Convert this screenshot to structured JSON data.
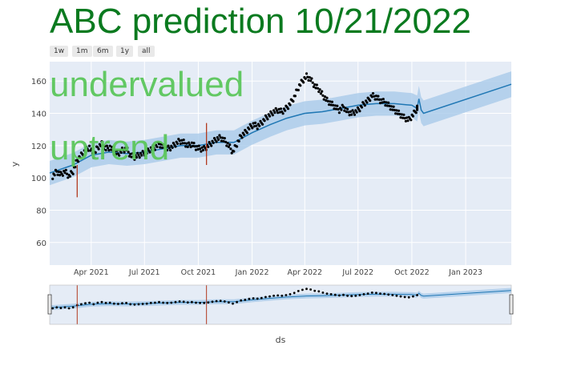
{
  "title": "ABC prediction 10/21/2022",
  "range_buttons": [
    "1w",
    "1m",
    "6m",
    "1y",
    "all"
  ],
  "annotations": [
    "undervalued",
    "uptrend"
  ],
  "colors": {
    "title": "#0a7a1f",
    "annotation": "#5cc75c",
    "plot_bg": "#e5ecf6",
    "band": "#a9cbea",
    "trend": "#1f77b4",
    "points": "#000000",
    "changepoint": "#b23a1f",
    "slider_mask": "#8e8e8e"
  },
  "chart_data": {
    "type": "line",
    "xlabel": "ds",
    "ylabel": "y",
    "y_ticks": [
      60,
      80,
      100,
      120,
      140,
      160
    ],
    "ylim": [
      46,
      172
    ],
    "x_ticks": [
      {
        "date": "2021-04-01",
        "label": "Apr 2021"
      },
      {
        "date": "2021-07-01",
        "label": "Jul 2021"
      },
      {
        "date": "2021-10-01",
        "label": "Oct 2021"
      },
      {
        "date": "2022-01-01",
        "label": "Jan 2022"
      },
      {
        "date": "2022-04-01",
        "label": "Apr 2022"
      },
      {
        "date": "2022-07-01",
        "label": "Jul 2022"
      },
      {
        "date": "2022-10-01",
        "label": "Oct 2022"
      },
      {
        "date": "2023-01-01",
        "label": "Jan 2023"
      }
    ],
    "xlim": [
      "2021-01-20",
      "2023-03-20"
    ],
    "grid": true,
    "legend": false,
    "actual_points": [
      [
        "2021-01-25",
        101
      ],
      [
        "2021-02-01",
        104
      ],
      [
        "2021-02-08",
        102
      ],
      [
        "2021-02-15",
        104
      ],
      [
        "2021-02-22",
        101
      ],
      [
        "2021-03-01",
        104
      ],
      [
        "2021-03-08",
        111
      ],
      [
        "2021-03-15",
        114
      ],
      [
        "2021-03-22",
        117
      ],
      [
        "2021-03-29",
        119
      ],
      [
        "2021-04-05",
        114
      ],
      [
        "2021-04-12",
        119
      ],
      [
        "2021-04-19",
        121
      ],
      [
        "2021-04-26",
        118
      ],
      [
        "2021-05-03",
        119
      ],
      [
        "2021-05-10",
        116
      ],
      [
        "2021-05-17",
        115
      ],
      [
        "2021-05-24",
        117
      ],
      [
        "2021-05-31",
        118
      ],
      [
        "2021-06-07",
        114
      ],
      [
        "2021-06-14",
        113
      ],
      [
        "2021-06-21",
        114
      ],
      [
        "2021-06-28",
        115
      ],
      [
        "2021-07-05",
        116
      ],
      [
        "2021-07-12",
        118
      ],
      [
        "2021-07-19",
        119
      ],
      [
        "2021-07-26",
        121
      ],
      [
        "2021-08-02",
        119
      ],
      [
        "2021-08-09",
        118
      ],
      [
        "2021-08-16",
        119
      ],
      [
        "2021-08-23",
        121
      ],
      [
        "2021-08-30",
        123
      ],
      [
        "2021-09-06",
        122
      ],
      [
        "2021-09-13",
        120
      ],
      [
        "2021-09-20",
        121
      ],
      [
        "2021-09-27",
        119
      ],
      [
        "2021-10-04",
        118
      ],
      [
        "2021-10-11",
        118
      ],
      [
        "2021-10-18",
        120
      ],
      [
        "2021-10-25",
        122
      ],
      [
        "2021-11-01",
        124
      ],
      [
        "2021-11-08",
        125
      ],
      [
        "2021-11-15",
        123
      ],
      [
        "2021-11-22",
        120
      ],
      [
        "2021-11-29",
        116
      ],
      [
        "2021-12-06",
        121
      ],
      [
        "2021-12-13",
        126
      ],
      [
        "2021-12-20",
        128
      ],
      [
        "2021-12-27",
        131
      ],
      [
        "2022-01-03",
        133
      ],
      [
        "2022-01-10",
        132
      ],
      [
        "2022-01-17",
        134
      ],
      [
        "2022-01-24",
        137
      ],
      [
        "2022-01-31",
        139
      ],
      [
        "2022-02-07",
        141
      ],
      [
        "2022-02-14",
        142
      ],
      [
        "2022-02-21",
        141
      ],
      [
        "2022-02-28",
        143
      ],
      [
        "2022-03-07",
        146
      ],
      [
        "2022-03-14",
        150
      ],
      [
        "2022-03-21",
        156
      ],
      [
        "2022-03-28",
        160
      ],
      [
        "2022-04-04",
        163
      ],
      [
        "2022-04-11",
        161
      ],
      [
        "2022-04-18",
        157
      ],
      [
        "2022-04-25",
        155
      ],
      [
        "2022-05-02",
        151
      ],
      [
        "2022-05-09",
        148
      ],
      [
        "2022-05-16",
        146
      ],
      [
        "2022-05-23",
        144
      ],
      [
        "2022-05-30",
        142
      ],
      [
        "2022-06-06",
        144
      ],
      [
        "2022-06-13",
        141
      ],
      [
        "2022-06-20",
        140
      ],
      [
        "2022-06-27",
        141
      ],
      [
        "2022-07-04",
        143
      ],
      [
        "2022-07-11",
        146
      ],
      [
        "2022-07-18",
        148
      ],
      [
        "2022-07-25",
        151
      ],
      [
        "2022-08-01",
        150
      ],
      [
        "2022-08-08",
        148
      ],
      [
        "2022-08-15",
        147
      ],
      [
        "2022-08-22",
        145
      ],
      [
        "2022-08-29",
        143
      ],
      [
        "2022-09-05",
        141
      ],
      [
        "2022-09-12",
        139
      ],
      [
        "2022-09-19",
        137
      ],
      [
        "2022-09-26",
        136
      ],
      [
        "2022-10-03",
        139
      ],
      [
        "2022-10-10",
        143
      ]
    ],
    "trend": [
      [
        "2021-01-20",
        103
      ],
      [
        "2021-03-01",
        108
      ],
      [
        "2021-04-01",
        114
      ],
      [
        "2021-05-01",
        116
      ],
      [
        "2021-06-01",
        115
      ],
      [
        "2021-07-01",
        116
      ],
      [
        "2021-08-01",
        118
      ],
      [
        "2021-09-01",
        120
      ],
      [
        "2021-10-01",
        120
      ],
      [
        "2021-11-01",
        122
      ],
      [
        "2021-12-01",
        122
      ],
      [
        "2022-01-01",
        128
      ],
      [
        "2022-02-01",
        133
      ],
      [
        "2022-03-01",
        137
      ],
      [
        "2022-04-01",
        140
      ],
      [
        "2022-05-01",
        141
      ],
      [
        "2022-06-01",
        143
      ],
      [
        "2022-07-01",
        145
      ],
      [
        "2022-08-01",
        146
      ],
      [
        "2022-09-01",
        146
      ],
      [
        "2022-10-01",
        145
      ],
      [
        "2022-10-10",
        143
      ],
      [
        "2022-10-13",
        149
      ],
      [
        "2022-10-17",
        142
      ],
      [
        "2022-10-21",
        140
      ],
      [
        "2023-03-20",
        158
      ]
    ],
    "changepoints": [
      {
        "date": "2021-03-08",
        "low": 88,
        "high": 108
      },
      {
        "date": "2021-10-15",
        "low": 108,
        "high": 134
      }
    ],
    "range_slider": {
      "selected_start": "2021-01-20",
      "selected_end": "2023-03-20"
    }
  }
}
